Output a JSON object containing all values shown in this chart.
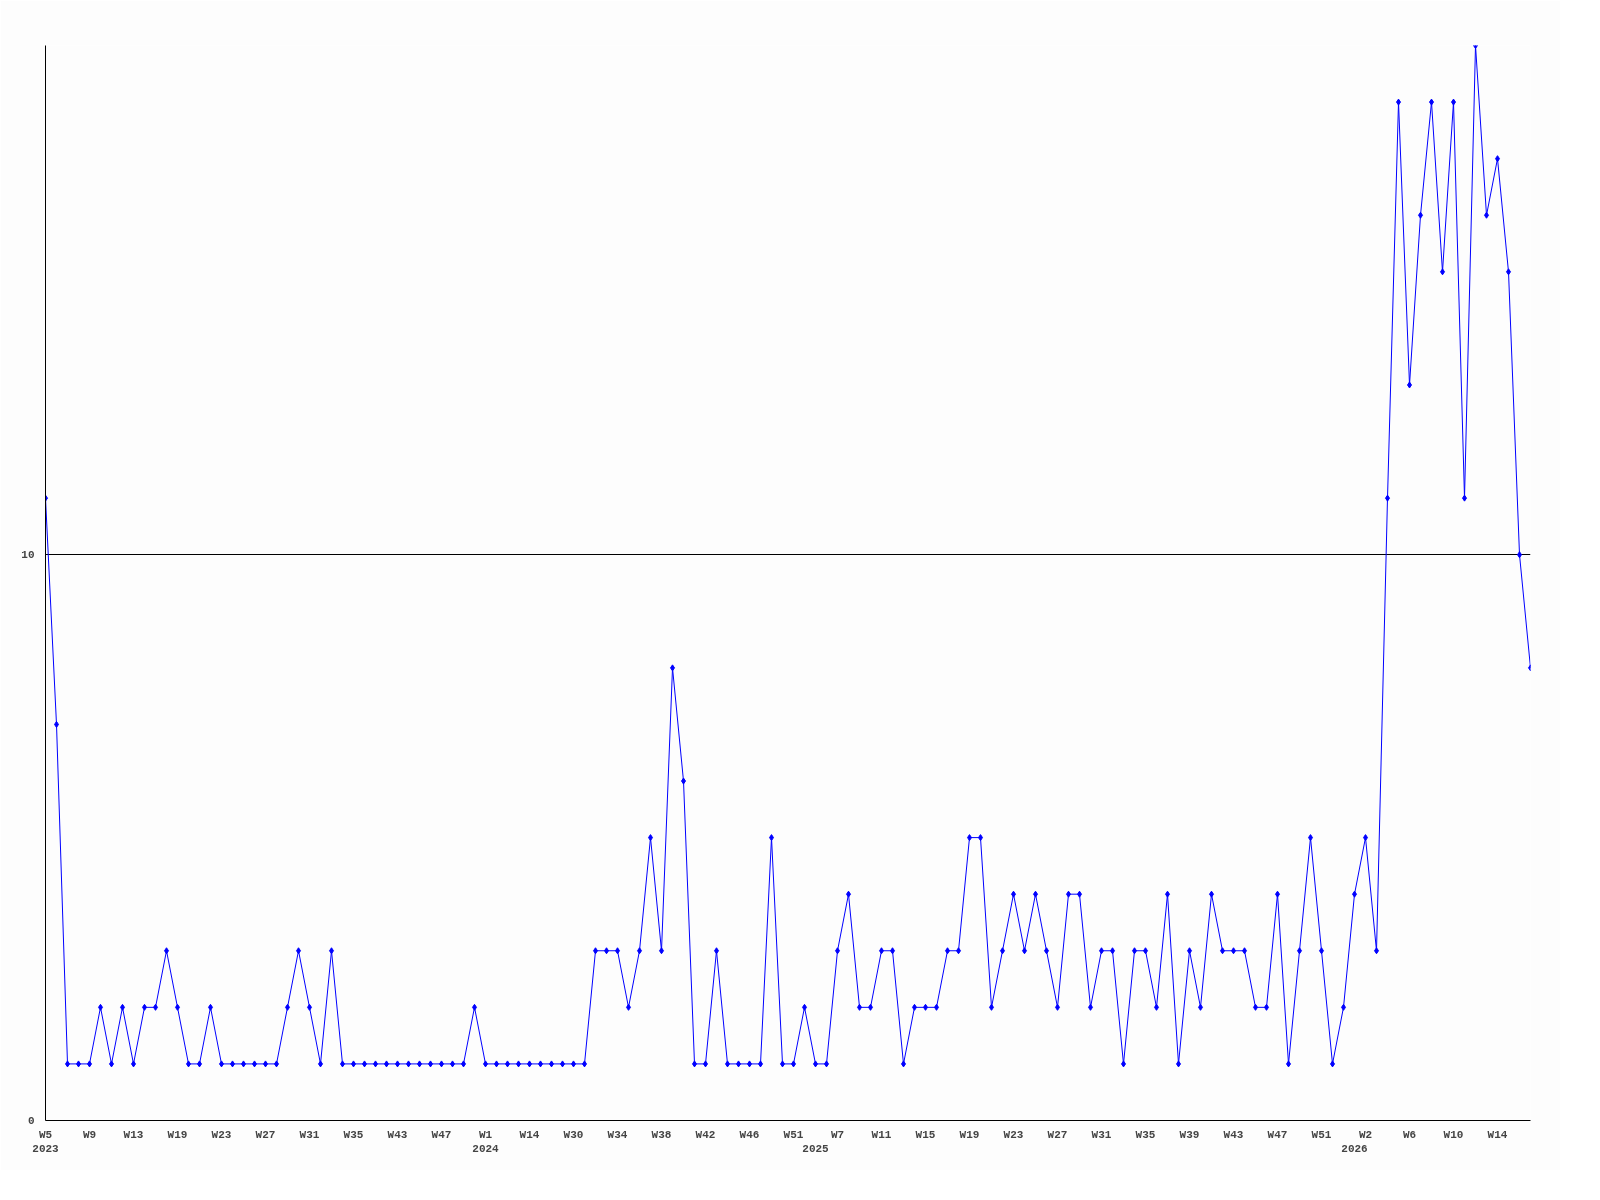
{
  "chart_data": {
    "type": "line",
    "categories": [
      "W5\n2023",
      null,
      null,
      null,
      "W9",
      null,
      null,
      null,
      "W13",
      null,
      null,
      null,
      "W19",
      null,
      null,
      null,
      "W23",
      null,
      null,
      null,
      "W27",
      null,
      null,
      null,
      "W31",
      null,
      null,
      null,
      "W35",
      null,
      null,
      null,
      "W43",
      null,
      null,
      null,
      "W47",
      null,
      null,
      null,
      "W1\n2024",
      null,
      null,
      null,
      "W14",
      null,
      null,
      null,
      "W30",
      null,
      null,
      null,
      "W34",
      null,
      null,
      null,
      "W38",
      null,
      null,
      null,
      "W42",
      null,
      null,
      null,
      "W46",
      null,
      null,
      null,
      "W51",
      null,
      "\n2025",
      null,
      "W7",
      null,
      null,
      null,
      "W11",
      null,
      null,
      null,
      "W15",
      null,
      null,
      null,
      "W19",
      null,
      null,
      null,
      "W23",
      null,
      null,
      null,
      "W27",
      null,
      null,
      null,
      "W31",
      null,
      null,
      null,
      "W35",
      null,
      null,
      null,
      "W39",
      null,
      null,
      null,
      "W43",
      null,
      null,
      null,
      "W47",
      null,
      null,
      null,
      "W51",
      null,
      null,
      "\n2026",
      "W2",
      null,
      null,
      null,
      "W6",
      null,
      null,
      null,
      "W10",
      null,
      null,
      null,
      "W14",
      null,
      null,
      null
    ],
    "series": [
      {
        "color": "#0000ff",
        "values": [
          11,
          7,
          1,
          1,
          1,
          2,
          1,
          2,
          1,
          2,
          2,
          3,
          2,
          1,
          1,
          2,
          1,
          1,
          1,
          1,
          1,
          1,
          2,
          3,
          2,
          1,
          3,
          1,
          1,
          1,
          1,
          1,
          1,
          1,
          1,
          1,
          1,
          1,
          1,
          2,
          1,
          1,
          1,
          1,
          1,
          1,
          1,
          1,
          1,
          1,
          3,
          3,
          3,
          2,
          3,
          5,
          3,
          8,
          6,
          1,
          1,
          3,
          1,
          1,
          1,
          1,
          5,
          1,
          1,
          2,
          1,
          1,
          3,
          4,
          2,
          2,
          3,
          3,
          1,
          2,
          2,
          2,
          3,
          3,
          5,
          5,
          2,
          3,
          4,
          3,
          4,
          3,
          2,
          4,
          4,
          2,
          3,
          3,
          1,
          3,
          3,
          2,
          4,
          1,
          3,
          2,
          4,
          3,
          3,
          3,
          2,
          2,
          4,
          1,
          3,
          5,
          3,
          1,
          2,
          4,
          5,
          3,
          11,
          18,
          13,
          16,
          18,
          15,
          18,
          11,
          19,
          16,
          17,
          15,
          10,
          8
        ]
      }
    ],
    "ylim": [
      0,
      19
    ],
    "yticks": [
      0,
      10
    ],
    "grid": "y",
    "marker": "diamond",
    "line_style": "solid"
  }
}
